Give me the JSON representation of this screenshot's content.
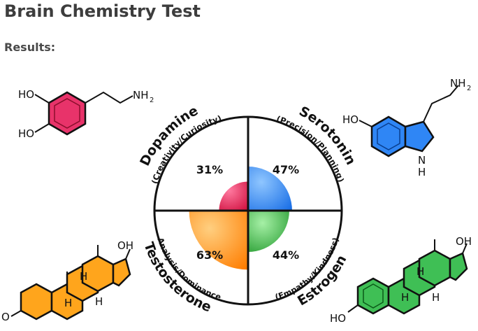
{
  "page": {
    "title": "Brain Chemistry Test",
    "subtitle": "Results:"
  },
  "chart_data": {
    "type": "polar-area",
    "max": 100,
    "series": [
      {
        "name": "Dopamine",
        "trait": "(Creativity/Curiosity)",
        "value": 31,
        "label": "31%",
        "color": "#e0174f",
        "quadrant": "top-left"
      },
      {
        "name": "Serotonin",
        "trait": "(Precision/Planning)",
        "value": 47,
        "label": "47%",
        "color": "#1f7fff",
        "quadrant": "top-right"
      },
      {
        "name": "Testosterone",
        "trait": "(Analysis/Dominance)",
        "value": 63,
        "label": "63%",
        "color": "#ff8a0f",
        "quadrant": "bottom-left"
      },
      {
        "name": "Estrogen",
        "trait": "(Empathy/Kindness)",
        "value": 44,
        "label": "44%",
        "color": "#2fa83a",
        "quadrant": "bottom-right"
      }
    ]
  },
  "molecules": {
    "dopamine": {
      "ho1": "HO",
      "ho2": "HO",
      "nh2": "NH",
      "nh2_sub": "2"
    },
    "serotonin": {
      "nh2": "NH",
      "nh2_sub": "2",
      "ho": "HO",
      "nh_n": "N",
      "nh_h": "H"
    },
    "testosterone": {
      "oh": "OH",
      "o": "O",
      "h1": "H",
      "h2": "H",
      "h3": "H"
    },
    "estrogen": {
      "oh": "OH",
      "ho": "HO",
      "h1": "H",
      "h2": "H",
      "h3": "H"
    }
  }
}
